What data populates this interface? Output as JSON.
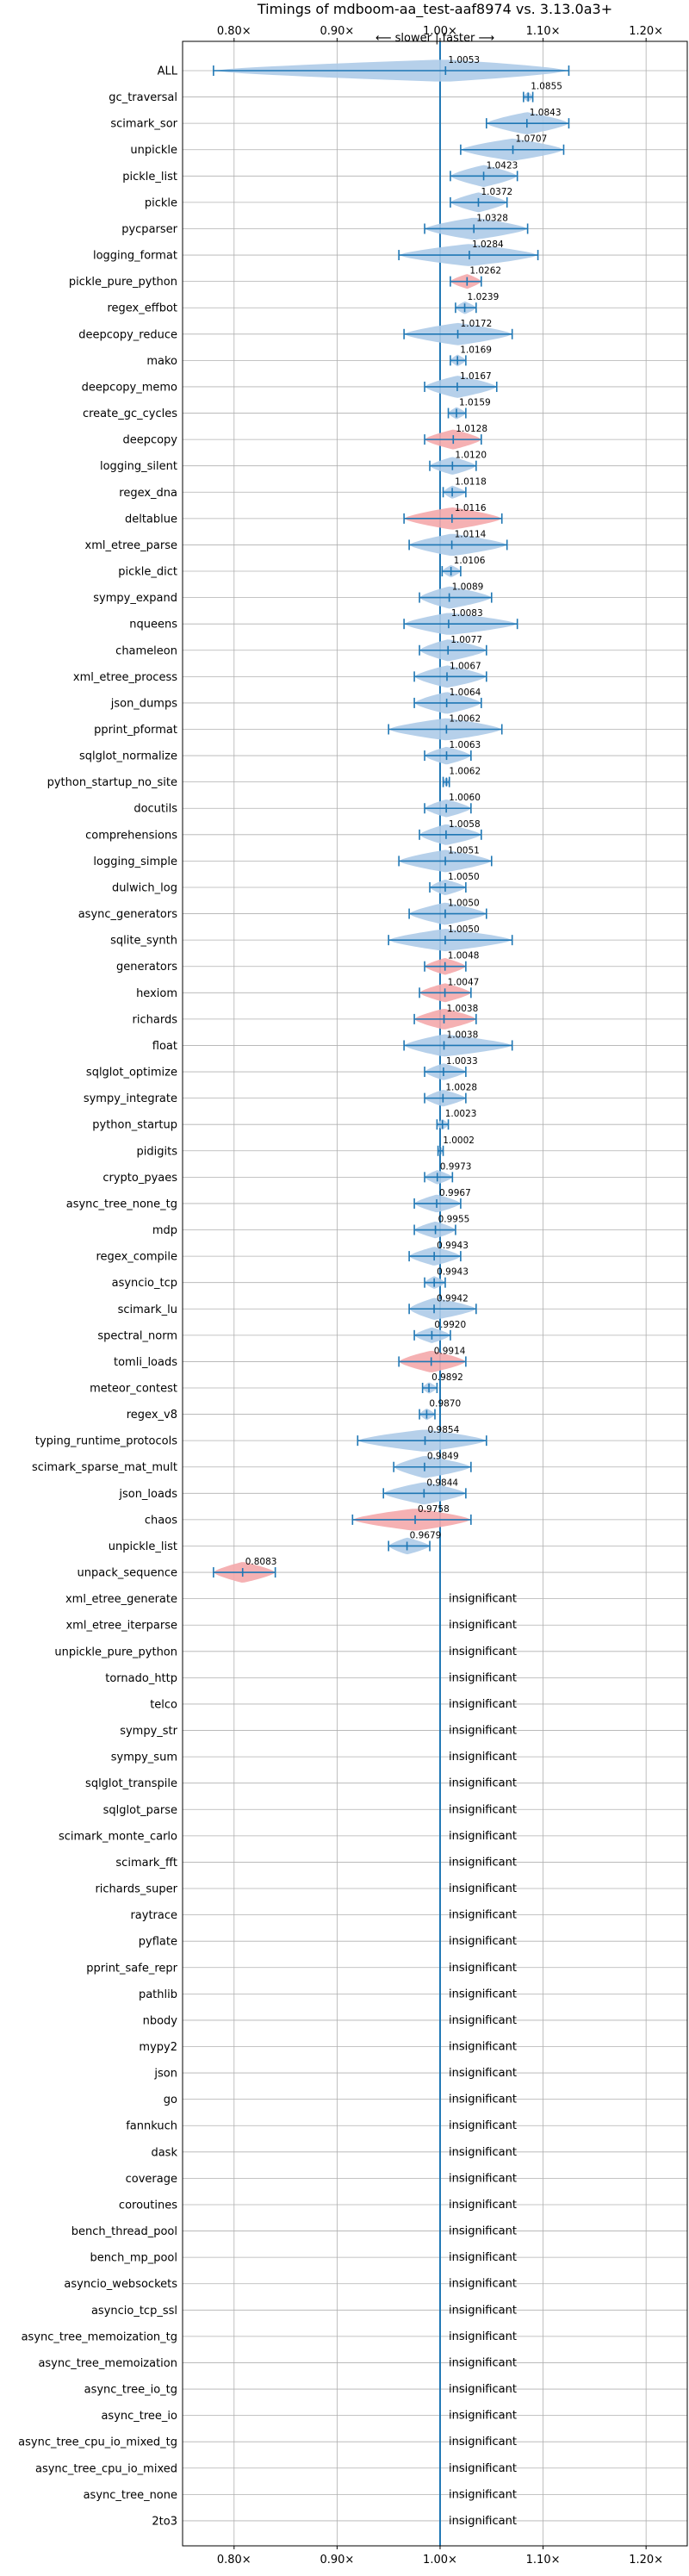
{
  "chart_data": {
    "type": "violin",
    "title": "Timings of mdboom-aa_test-aaf8974 vs. 3.13.0a3+",
    "subtitle": "⟵ slower | faster ⟶",
    "xlim": [
      0.75,
      1.24
    ],
    "x_ticks": [
      0.8,
      0.9,
      1.0,
      1.1,
      1.2
    ],
    "x_tick_labels": [
      "0.80×",
      "0.90×",
      "1.00×",
      "1.10×",
      "1.20×"
    ],
    "grid": true,
    "reference_line": 1.0,
    "insignificant_label": "insignificant",
    "colors": {
      "faster": "#aecbe8",
      "slower": "#f4a9ab",
      "line": "#1f77b4",
      "grid": "#b0b0b0"
    },
    "benchmarks": [
      {
        "name": "ALL",
        "value": 1.0053,
        "label": "1.0053",
        "min": 0.78,
        "max": 1.125,
        "color": "faster"
      },
      {
        "name": "gc_traversal",
        "value": 1.0855,
        "label": "1.0855",
        "min": 1.081,
        "max": 1.09,
        "color": "faster"
      },
      {
        "name": "scimark_sor",
        "value": 1.0843,
        "label": "1.0843",
        "min": 1.045,
        "max": 1.125,
        "color": "faster"
      },
      {
        "name": "unpickle",
        "value": 1.0707,
        "label": "1.0707",
        "min": 1.02,
        "max": 1.12,
        "color": "faster"
      },
      {
        "name": "pickle_list",
        "value": 1.0423,
        "label": "1.0423",
        "min": 1.01,
        "max": 1.075,
        "color": "faster"
      },
      {
        "name": "pickle",
        "value": 1.0372,
        "label": "1.0372",
        "min": 1.01,
        "max": 1.065,
        "color": "faster"
      },
      {
        "name": "pycparser",
        "value": 1.0328,
        "label": "1.0328",
        "min": 0.985,
        "max": 1.085,
        "color": "faster"
      },
      {
        "name": "logging_format",
        "value": 1.0284,
        "label": "1.0284",
        "min": 0.96,
        "max": 1.095,
        "color": "faster"
      },
      {
        "name": "pickle_pure_python",
        "value": 1.0262,
        "label": "1.0262",
        "min": 1.01,
        "max": 1.04,
        "color": "slower"
      },
      {
        "name": "regex_effbot",
        "value": 1.0239,
        "label": "1.0239",
        "min": 1.015,
        "max": 1.035,
        "color": "faster"
      },
      {
        "name": "deepcopy_reduce",
        "value": 1.0172,
        "label": "1.0172",
        "min": 0.965,
        "max": 1.07,
        "color": "faster"
      },
      {
        "name": "mako",
        "value": 1.0169,
        "label": "1.0169",
        "min": 1.01,
        "max": 1.025,
        "color": "faster"
      },
      {
        "name": "deepcopy_memo",
        "value": 1.0167,
        "label": "1.0167",
        "min": 0.985,
        "max": 1.055,
        "color": "faster"
      },
      {
        "name": "create_gc_cycles",
        "value": 1.0159,
        "label": "1.0159",
        "min": 1.008,
        "max": 1.025,
        "color": "faster"
      },
      {
        "name": "deepcopy",
        "value": 1.0128,
        "label": "1.0128",
        "min": 0.985,
        "max": 1.04,
        "color": "slower"
      },
      {
        "name": "logging_silent",
        "value": 1.012,
        "label": "1.0120",
        "min": 0.99,
        "max": 1.035,
        "color": "faster"
      },
      {
        "name": "regex_dna",
        "value": 1.0118,
        "label": "1.0118",
        "min": 1.003,
        "max": 1.025,
        "color": "faster"
      },
      {
        "name": "deltablue",
        "value": 1.0116,
        "label": "1.0116",
        "min": 0.965,
        "max": 1.06,
        "color": "slower"
      },
      {
        "name": "xml_etree_parse",
        "value": 1.0114,
        "label": "1.0114",
        "min": 0.97,
        "max": 1.065,
        "color": "faster"
      },
      {
        "name": "pickle_dict",
        "value": 1.0106,
        "label": "1.0106",
        "min": 1.002,
        "max": 1.02,
        "color": "faster"
      },
      {
        "name": "sympy_expand",
        "value": 1.0089,
        "label": "1.0089",
        "min": 0.98,
        "max": 1.05,
        "color": "faster"
      },
      {
        "name": "nqueens",
        "value": 1.0083,
        "label": "1.0083",
        "min": 0.965,
        "max": 1.075,
        "color": "faster"
      },
      {
        "name": "chameleon",
        "value": 1.0077,
        "label": "1.0077",
        "min": 0.98,
        "max": 1.045,
        "color": "faster"
      },
      {
        "name": "xml_etree_process",
        "value": 1.0067,
        "label": "1.0067",
        "min": 0.975,
        "max": 1.045,
        "color": "faster"
      },
      {
        "name": "json_dumps",
        "value": 1.0064,
        "label": "1.0064",
        "min": 0.975,
        "max": 1.04,
        "color": "faster"
      },
      {
        "name": "pprint_pformat",
        "value": 1.0062,
        "label": "1.0062",
        "min": 0.95,
        "max": 1.06,
        "color": "faster"
      },
      {
        "name": "sqlglot_normalize",
        "value": 1.0063,
        "label": "1.0063",
        "min": 0.985,
        "max": 1.03,
        "color": "faster"
      },
      {
        "name": "python_startup_no_site",
        "value": 1.0062,
        "label": "1.0062",
        "min": 1.003,
        "max": 1.009,
        "color": "faster"
      },
      {
        "name": "docutils",
        "value": 1.006,
        "label": "1.0060",
        "min": 0.985,
        "max": 1.03,
        "color": "faster"
      },
      {
        "name": "comprehensions",
        "value": 1.0058,
        "label": "1.0058",
        "min": 0.98,
        "max": 1.04,
        "color": "faster"
      },
      {
        "name": "logging_simple",
        "value": 1.0051,
        "label": "1.0051",
        "min": 0.96,
        "max": 1.05,
        "color": "faster"
      },
      {
        "name": "dulwich_log",
        "value": 1.005,
        "label": "1.0050",
        "min": 0.99,
        "max": 1.025,
        "color": "faster"
      },
      {
        "name": "async_generators",
        "value": 1.005,
        "label": "1.0050",
        "min": 0.97,
        "max": 1.045,
        "color": "faster"
      },
      {
        "name": "sqlite_synth",
        "value": 1.005,
        "label": "1.0050",
        "min": 0.95,
        "max": 1.07,
        "color": "faster"
      },
      {
        "name": "generators",
        "value": 1.0048,
        "label": "1.0048",
        "min": 0.985,
        "max": 1.025,
        "color": "slower"
      },
      {
        "name": "hexiom",
        "value": 1.0047,
        "label": "1.0047",
        "min": 0.98,
        "max": 1.03,
        "color": "slower"
      },
      {
        "name": "richards",
        "value": 1.0038,
        "label": "1.0038",
        "min": 0.975,
        "max": 1.035,
        "color": "slower"
      },
      {
        "name": "float",
        "value": 1.0038,
        "label": "1.0038",
        "min": 0.965,
        "max": 1.07,
        "color": "faster"
      },
      {
        "name": "sqlglot_optimize",
        "value": 1.0033,
        "label": "1.0033",
        "min": 0.985,
        "max": 1.025,
        "color": "faster"
      },
      {
        "name": "sympy_integrate",
        "value": 1.0028,
        "label": "1.0028",
        "min": 0.985,
        "max": 1.025,
        "color": "faster"
      },
      {
        "name": "python_startup",
        "value": 1.0023,
        "label": "1.0023",
        "min": 0.997,
        "max": 1.008,
        "color": "faster"
      },
      {
        "name": "pidigits",
        "value": 1.0002,
        "label": "1.0002",
        "min": 0.998,
        "max": 1.003,
        "color": "faster"
      },
      {
        "name": "crypto_pyaes",
        "value": 0.9973,
        "label": "0.9973",
        "min": 0.985,
        "max": 1.012,
        "color": "faster"
      },
      {
        "name": "async_tree_none_tg",
        "value": 0.9967,
        "label": "0.9967",
        "min": 0.975,
        "max": 1.02,
        "color": "faster"
      },
      {
        "name": "mdp",
        "value": 0.9955,
        "label": "0.9955",
        "min": 0.975,
        "max": 1.015,
        "color": "faster"
      },
      {
        "name": "regex_compile",
        "value": 0.9943,
        "label": "0.9943",
        "min": 0.97,
        "max": 1.02,
        "color": "faster"
      },
      {
        "name": "asyncio_tcp",
        "value": 0.9943,
        "label": "0.9943",
        "min": 0.985,
        "max": 1.005,
        "color": "faster"
      },
      {
        "name": "scimark_lu",
        "value": 0.9942,
        "label": "0.9942",
        "min": 0.97,
        "max": 1.035,
        "color": "faster"
      },
      {
        "name": "spectral_norm",
        "value": 0.992,
        "label": "0.9920",
        "min": 0.975,
        "max": 1.01,
        "color": "faster"
      },
      {
        "name": "tomli_loads",
        "value": 0.9914,
        "label": "0.9914",
        "min": 0.96,
        "max": 1.025,
        "color": "slower"
      },
      {
        "name": "meteor_contest",
        "value": 0.9892,
        "label": "0.9892",
        "min": 0.983,
        "max": 0.997,
        "color": "faster"
      },
      {
        "name": "regex_v8",
        "value": 0.987,
        "label": "0.9870",
        "min": 0.98,
        "max": 0.995,
        "color": "faster"
      },
      {
        "name": "typing_runtime_protocols",
        "value": 0.9854,
        "label": "0.9854",
        "min": 0.92,
        "max": 1.045,
        "color": "faster"
      },
      {
        "name": "scimark_sparse_mat_mult",
        "value": 0.9849,
        "label": "0.9849",
        "min": 0.955,
        "max": 1.03,
        "color": "faster"
      },
      {
        "name": "json_loads",
        "value": 0.9844,
        "label": "0.9844",
        "min": 0.945,
        "max": 1.025,
        "color": "faster"
      },
      {
        "name": "chaos",
        "value": 0.9758,
        "label": "0.9758",
        "min": 0.915,
        "max": 1.03,
        "color": "slower"
      },
      {
        "name": "unpickle_list",
        "value": 0.9679,
        "label": "0.9679",
        "min": 0.95,
        "max": 0.99,
        "color": "faster"
      },
      {
        "name": "unpack_sequence",
        "value": 0.8083,
        "label": "0.8083",
        "min": 0.78,
        "max": 0.84,
        "color": "slower"
      },
      {
        "name": "xml_etree_generate",
        "insignificant": true
      },
      {
        "name": "xml_etree_iterparse",
        "insignificant": true
      },
      {
        "name": "unpickle_pure_python",
        "insignificant": true
      },
      {
        "name": "tornado_http",
        "insignificant": true
      },
      {
        "name": "telco",
        "insignificant": true
      },
      {
        "name": "sympy_str",
        "insignificant": true
      },
      {
        "name": "sympy_sum",
        "insignificant": true
      },
      {
        "name": "sqlglot_transpile",
        "insignificant": true
      },
      {
        "name": "sqlglot_parse",
        "insignificant": true
      },
      {
        "name": "scimark_monte_carlo",
        "insignificant": true
      },
      {
        "name": "scimark_fft",
        "insignificant": true
      },
      {
        "name": "richards_super",
        "insignificant": true
      },
      {
        "name": "raytrace",
        "insignificant": true
      },
      {
        "name": "pyflate",
        "insignificant": true
      },
      {
        "name": "pprint_safe_repr",
        "insignificant": true
      },
      {
        "name": "pathlib",
        "insignificant": true
      },
      {
        "name": "nbody",
        "insignificant": true
      },
      {
        "name": "mypy2",
        "insignificant": true
      },
      {
        "name": "json",
        "insignificant": true
      },
      {
        "name": "go",
        "insignificant": true
      },
      {
        "name": "fannkuch",
        "insignificant": true
      },
      {
        "name": "dask",
        "insignificant": true
      },
      {
        "name": "coverage",
        "insignificant": true
      },
      {
        "name": "coroutines",
        "insignificant": true
      },
      {
        "name": "bench_thread_pool",
        "insignificant": true
      },
      {
        "name": "bench_mp_pool",
        "insignificant": true
      },
      {
        "name": "asyncio_websockets",
        "insignificant": true
      },
      {
        "name": "asyncio_tcp_ssl",
        "insignificant": true
      },
      {
        "name": "async_tree_memoization_tg",
        "insignificant": true
      },
      {
        "name": "async_tree_memoization",
        "insignificant": true
      },
      {
        "name": "async_tree_io_tg",
        "insignificant": true
      },
      {
        "name": "async_tree_io",
        "insignificant": true
      },
      {
        "name": "async_tree_cpu_io_mixed_tg",
        "insignificant": true
      },
      {
        "name": "async_tree_cpu_io_mixed",
        "insignificant": true
      },
      {
        "name": "async_tree_none",
        "insignificant": true
      },
      {
        "name": "2to3",
        "insignificant": true
      }
    ]
  }
}
